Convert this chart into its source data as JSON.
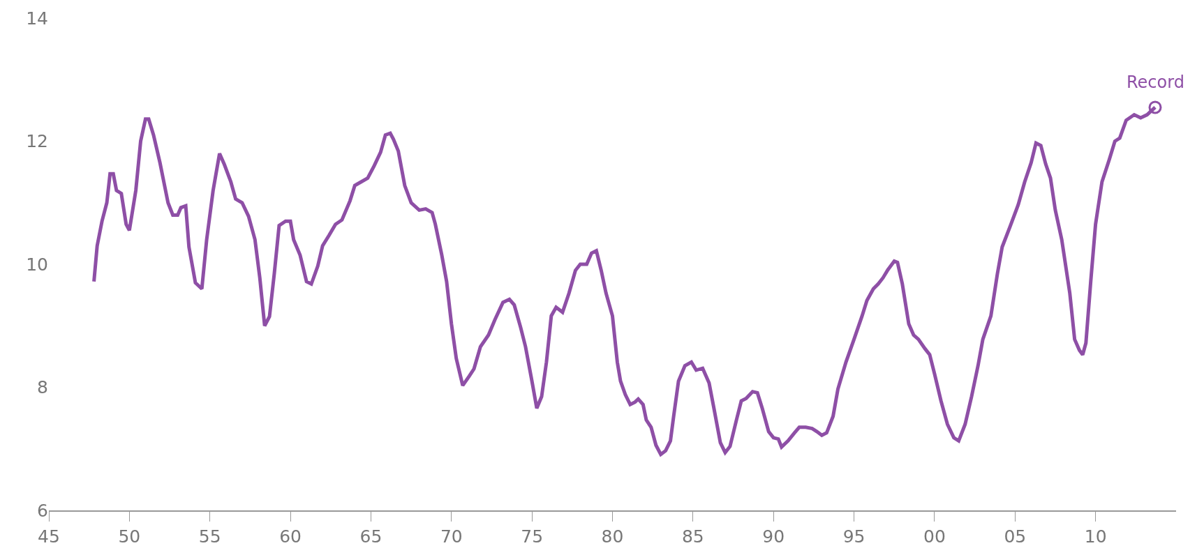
{
  "chart_data": {
    "type": "line",
    "x": [
      1947.8,
      1948.0,
      1948.3,
      1948.6,
      1948.8,
      1949.0,
      1949.2,
      1949.5,
      1949.8,
      1950.0,
      1950.4,
      1950.7,
      1951.0,
      1951.2,
      1951.5,
      1951.9,
      1952.4,
      1952.7,
      1953.0,
      1953.2,
      1953.5,
      1953.7,
      1954.1,
      1954.5,
      1954.8,
      1955.2,
      1955.6,
      1955.9,
      1956.3,
      1956.6,
      1957.0,
      1957.4,
      1957.8,
      1958.1,
      1958.4,
      1958.7,
      1959.0,
      1959.3,
      1959.7,
      1960.0,
      1960.2,
      1960.6,
      1961.0,
      1961.3,
      1961.7,
      1962.0,
      1962.4,
      1962.8,
      1963.2,
      1963.7,
      1964.0,
      1964.4,
      1964.8,
      1965.2,
      1965.6,
      1965.9,
      1966.2,
      1966.4,
      1966.7,
      1967.1,
      1967.5,
      1968.0,
      1968.4,
      1968.8,
      1969.0,
      1969.4,
      1969.7,
      1970.0,
      1970.3,
      1970.7,
      1971.1,
      1971.4,
      1971.8,
      1972.3,
      1972.7,
      1973.2,
      1973.6,
      1973.9,
      1974.3,
      1974.6,
      1975.0,
      1975.3,
      1975.6,
      1975.9,
      1976.2,
      1976.5,
      1976.9,
      1977.3,
      1977.7,
      1978.0,
      1978.4,
      1978.7,
      1979.0,
      1979.3,
      1979.6,
      1980.0,
      1980.3,
      1980.5,
      1980.8,
      1981.1,
      1981.4,
      1981.6,
      1981.9,
      1982.1,
      1982.4,
      1982.7,
      1983.0,
      1983.3,
      1983.6,
      1983.8,
      1984.1,
      1984.5,
      1984.9,
      1985.2,
      1985.6,
      1986.0,
      1986.3,
      1986.7,
      1987.0,
      1987.3,
      1987.7,
      1988.0,
      1988.3,
      1988.7,
      1989.0,
      1989.3,
      1989.7,
      1990.0,
      1990.3,
      1990.5,
      1990.9,
      1991.3,
      1991.6,
      1992.0,
      1992.4,
      1992.7,
      1993.0,
      1993.3,
      1993.7,
      1994.0,
      1994.5,
      1995.0,
      1995.5,
      1995.8,
      1996.2,
      1996.5,
      1996.8,
      1997.1,
      1997.5,
      1997.7,
      1998.0,
      1998.4,
      1998.7,
      1999.0,
      1999.4,
      1999.7,
      2000.0,
      2000.4,
      2000.8,
      2001.2,
      2001.5,
      2001.9,
      2002.3,
      2002.7,
      2003.0,
      2003.5,
      2003.9,
      2004.2,
      2004.7,
      2005.2,
      2005.6,
      2006.0,
      2006.3,
      2006.6,
      2006.9,
      2007.2,
      2007.5,
      2007.9,
      2008.4,
      2008.7,
      2009.0,
      2009.2,
      2009.4,
      2009.7,
      2010.0,
      2010.4,
      2010.85,
      2011.2,
      2011.5,
      2011.9,
      2012.4,
      2012.8,
      2013.2,
      2013.7
    ],
    "series": [
      {
        "color": "#8e4fa6",
        "values": [
          9.72,
          10.3,
          10.7,
          11.0,
          11.47,
          11.47,
          11.2,
          11.15,
          10.65,
          10.55,
          11.2,
          12.0,
          12.36,
          12.36,
          12.1,
          11.65,
          11.0,
          10.8,
          10.8,
          10.92,
          10.95,
          10.28,
          9.7,
          9.6,
          10.4,
          11.2,
          11.8,
          11.62,
          11.34,
          11.06,
          11.0,
          10.78,
          10.4,
          9.78,
          9.0,
          9.15,
          9.85,
          10.63,
          10.7,
          10.7,
          10.4,
          10.15,
          9.72,
          9.68,
          9.97,
          10.3,
          10.47,
          10.65,
          10.72,
          11.03,
          11.28,
          11.34,
          11.4,
          11.6,
          11.82,
          12.1,
          12.13,
          12.03,
          11.84,
          11.28,
          11.0,
          10.88,
          10.9,
          10.84,
          10.65,
          10.15,
          9.72,
          9.03,
          8.47,
          8.03,
          8.18,
          8.3,
          8.66,
          8.85,
          9.1,
          9.38,
          9.43,
          9.34,
          8.97,
          8.66,
          8.1,
          7.66,
          7.85,
          8.41,
          9.16,
          9.3,
          9.22,
          9.53,
          9.9,
          10.0,
          10.0,
          10.18,
          10.22,
          9.9,
          9.53,
          9.16,
          8.41,
          8.1,
          7.88,
          7.72,
          7.76,
          7.81,
          7.72,
          7.47,
          7.35,
          7.06,
          6.91,
          6.97,
          7.13,
          7.53,
          8.1,
          8.35,
          8.41,
          8.28,
          8.31,
          8.07,
          7.66,
          7.1,
          6.94,
          7.04,
          7.47,
          7.78,
          7.82,
          7.93,
          7.91,
          7.66,
          7.28,
          7.18,
          7.16,
          7.03,
          7.13,
          7.26,
          7.35,
          7.35,
          7.33,
          7.28,
          7.22,
          7.26,
          7.53,
          7.97,
          8.41,
          8.78,
          9.16,
          9.41,
          9.6,
          9.68,
          9.78,
          9.91,
          10.05,
          10.03,
          9.68,
          9.03,
          8.85,
          8.78,
          8.63,
          8.53,
          8.22,
          7.78,
          7.4,
          7.18,
          7.13,
          7.4,
          7.85,
          8.35,
          8.78,
          9.16,
          9.84,
          10.28,
          10.62,
          10.97,
          11.34,
          11.65,
          11.97,
          11.93,
          11.63,
          11.4,
          10.88,
          10.4,
          9.53,
          8.78,
          8.6,
          8.53,
          8.72,
          9.72,
          10.65,
          11.34,
          11.7,
          12.0,
          12.05,
          12.34,
          12.43,
          12.38,
          12.43,
          12.55
        ]
      }
    ],
    "xlim": [
      1945,
      2015
    ],
    "xticks": [
      {
        "value": 1945,
        "label": "45"
      },
      {
        "value": 1950,
        "label": "50"
      },
      {
        "value": 1955,
        "label": "55"
      },
      {
        "value": 1960,
        "label": "60"
      },
      {
        "value": 1965,
        "label": "65"
      },
      {
        "value": 1970,
        "label": "70"
      },
      {
        "value": 1975,
        "label": "75"
      },
      {
        "value": 1980,
        "label": "80"
      },
      {
        "value": 1985,
        "label": "85"
      },
      {
        "value": 1990,
        "label": "90"
      },
      {
        "value": 1995,
        "label": "95"
      },
      {
        "value": 2000,
        "label": "00"
      },
      {
        "value": 2005,
        "label": "05"
      },
      {
        "value": 2010,
        "label": "10"
      }
    ],
    "ylim": [
      6,
      14
    ],
    "yticks": [
      6,
      8,
      10,
      12,
      14
    ],
    "marker": "none",
    "line_style": "solid",
    "annotations": [
      {
        "text": "Record",
        "x": 2013.7,
        "y": 12.55
      }
    ]
  }
}
